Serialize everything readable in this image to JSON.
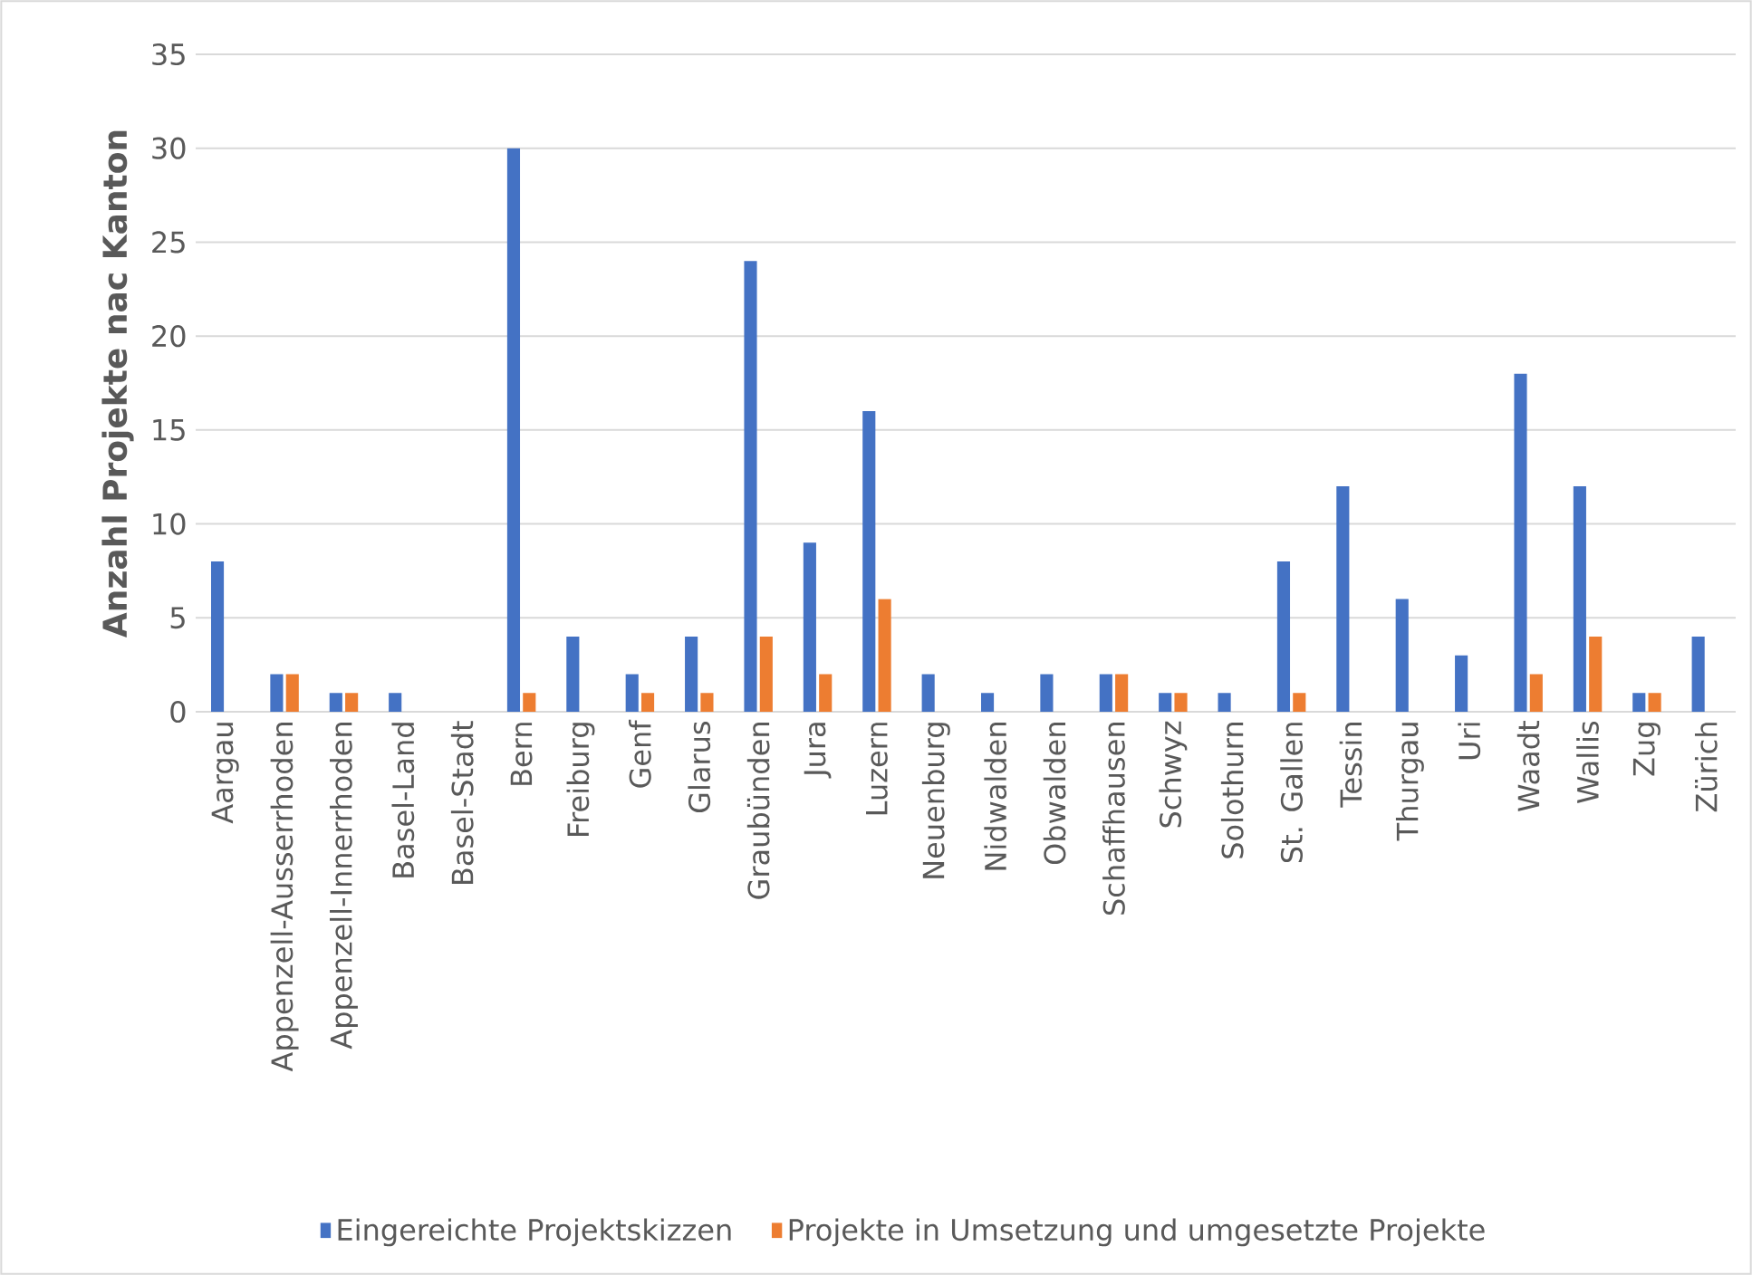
{
  "chart_data": {
    "type": "bar",
    "ylabel": "Anzahl Projekte nac Kanton",
    "categories": [
      "Aargau",
      "Appenzell-Ausserrhoden",
      "Appenzell-Innerrhoden",
      "Basel-Land",
      "Basel-Stadt",
      "Bern",
      "Freiburg",
      "Genf",
      "Glarus",
      "Graubünden",
      "Jura",
      "Luzern",
      "Neuenburg",
      "Nidwalden",
      "Obwalden",
      "Schaffhausen",
      "Schwyz",
      "Solothurn",
      "St. Gallen",
      "Tessin",
      "Thurgau",
      "Uri",
      "Waadt",
      "Wallis",
      "Zug",
      "Zürich"
    ],
    "series": [
      {
        "name": "Eingereichte Projektskizzen",
        "color": "#4472c4",
        "values": [
          8,
          2,
          1,
          1,
          0,
          30,
          4,
          2,
          4,
          24,
          9,
          16,
          2,
          1,
          2,
          2,
          1,
          1,
          8,
          12,
          6,
          3,
          18,
          12,
          1,
          4
        ]
      },
      {
        "name": "Projekte in Umsetzung und umgesetzte Projekte",
        "color": "#ed7d31",
        "values": [
          0,
          2,
          1,
          0,
          0,
          1,
          0,
          1,
          1,
          4,
          2,
          6,
          0,
          0,
          0,
          2,
          1,
          0,
          1,
          0,
          0,
          0,
          2,
          4,
          1,
          0
        ]
      }
    ],
    "ylim": [
      0,
      35
    ],
    "yticks": [
      0,
      5,
      10,
      15,
      20,
      25,
      30,
      35
    ],
    "grid": "y",
    "legend": "bottom"
  }
}
